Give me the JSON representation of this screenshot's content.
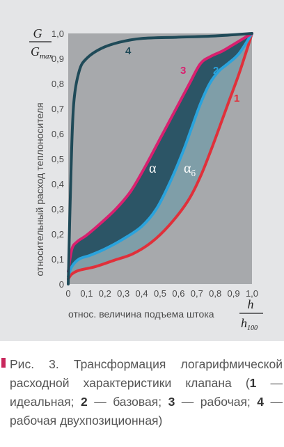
{
  "chart_data": {
    "type": "line",
    "y_axis": {
      "fraction_numerator": "G",
      "fraction_denominator_base": "G",
      "fraction_denominator_sub": "max",
      "label": "относительный расход теплоносителя",
      "ylim": [
        0,
        1.0
      ],
      "tick_labels": [
        "0",
        "0,1",
        "0,2",
        "0,3",
        "0,4",
        "0,5",
        "0,6",
        "0,7",
        "0,8",
        "0,9",
        "1,0"
      ]
    },
    "x_axis": {
      "fraction_numerator": "h",
      "fraction_denominator_base": "h",
      "fraction_denominator_sub": "100",
      "label": "относ. величина подъема штока",
      "xlim": [
        0,
        1.0
      ],
      "tick_labels": [
        "0",
        "0,1",
        "0,2",
        "0,3",
        "0,4",
        "0,5",
        "0,6",
        "0,7",
        "0,8",
        "0,9",
        "1,0"
      ]
    },
    "series": [
      {
        "name": "1",
        "color": "#e0303a",
        "points": [
          [
            0,
            0.02
          ],
          [
            0.02,
            0.04
          ],
          [
            0.06,
            0.055
          ],
          [
            0.15,
            0.07
          ],
          [
            0.25,
            0.095
          ],
          [
            0.35,
            0.12
          ],
          [
            0.45,
            0.165
          ],
          [
            0.55,
            0.235
          ],
          [
            0.65,
            0.33
          ],
          [
            0.72,
            0.43
          ],
          [
            0.78,
            0.54
          ],
          [
            0.84,
            0.66
          ],
          [
            0.88,
            0.74
          ],
          [
            0.93,
            0.84
          ],
          [
            0.97,
            0.93
          ],
          [
            1.0,
            1.0
          ]
        ]
      },
      {
        "name": "2",
        "color": "#2aa3dc",
        "points": [
          [
            0,
            0.03
          ],
          [
            0.02,
            0.07
          ],
          [
            0.06,
            0.1
          ],
          [
            0.12,
            0.115
          ],
          [
            0.2,
            0.14
          ],
          [
            0.3,
            0.18
          ],
          [
            0.4,
            0.23
          ],
          [
            0.48,
            0.3
          ],
          [
            0.55,
            0.4
          ],
          [
            0.62,
            0.52
          ],
          [
            0.67,
            0.62
          ],
          [
            0.72,
            0.72
          ],
          [
            0.77,
            0.8
          ],
          [
            0.82,
            0.85
          ],
          [
            0.87,
            0.88
          ],
          [
            0.93,
            0.92
          ],
          [
            1.0,
            1.0
          ]
        ]
      },
      {
        "name": "3",
        "color": "#d9206f",
        "points": [
          [
            0,
            0.05
          ],
          [
            0.02,
            0.14
          ],
          [
            0.05,
            0.17
          ],
          [
            0.1,
            0.195
          ],
          [
            0.18,
            0.245
          ],
          [
            0.26,
            0.3
          ],
          [
            0.34,
            0.37
          ],
          [
            0.42,
            0.47
          ],
          [
            0.5,
            0.58
          ],
          [
            0.58,
            0.69
          ],
          [
            0.66,
            0.8
          ],
          [
            0.72,
            0.88
          ],
          [
            0.78,
            0.91
          ],
          [
            0.84,
            0.93
          ],
          [
            0.92,
            0.965
          ],
          [
            1.0,
            1.0
          ]
        ]
      },
      {
        "name": "4",
        "color": "#1f4a58",
        "points": [
          [
            0,
            0
          ],
          [
            0.015,
            0.45
          ],
          [
            0.03,
            0.72
          ],
          [
            0.06,
            0.85
          ],
          [
            0.1,
            0.9
          ],
          [
            0.18,
            0.94
          ],
          [
            0.28,
            0.965
          ],
          [
            0.4,
            0.98
          ],
          [
            0.6,
            0.985
          ],
          [
            0.8,
            0.99
          ],
          [
            1.0,
            1.0
          ]
        ]
      }
    ],
    "regions": [
      {
        "label": "α",
        "between": [
          "3",
          "2"
        ],
        "color": "#2c5566"
      },
      {
        "label": "α",
        "label_sub": "б",
        "between": [
          "2",
          "1"
        ],
        "color": "#7f9ea8"
      }
    ],
    "grid": false
  },
  "caption": {
    "prefix": "Рис. 3. Трансформация логарифмической расходной характеристики клапана (",
    "n1": "1",
    "t1": " — идеальная; ",
    "n2": "2",
    "t2": " — базовая; ",
    "n3": "3",
    "t3": " — рабочая; ",
    "n4": "4",
    "t4": " — рабочая двухпозиционная)"
  }
}
